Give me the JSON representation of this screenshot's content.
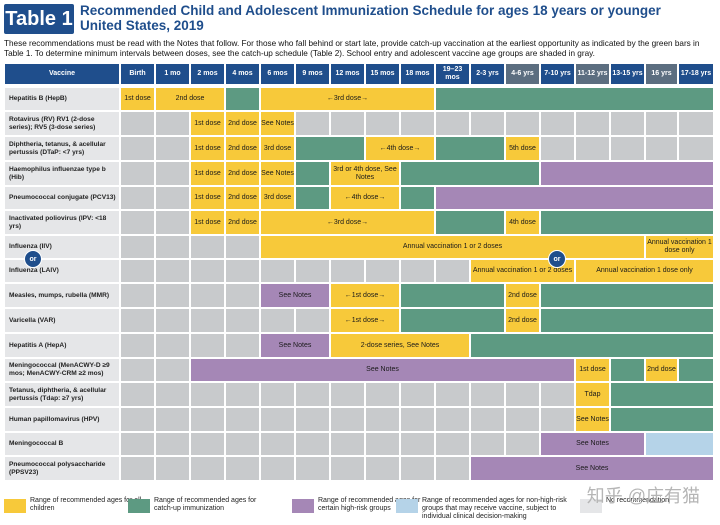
{
  "header": {
    "badge": "Table 1",
    "title": "Recommended Child and Adolescent Immunization Schedule for ages 18 years or younger United States, 2019",
    "intro": "These recommendations must be read with the Notes that follow. For those who fall behind or start late, provide catch-up vaccination at the earliest opportunity as indicated by the green bars in Table 1. To determine minimum intervals between doses, see the catch-up schedule (Table 2). School entry and adolescent vaccine age groups are shaded in gray."
  },
  "colors": {
    "yellow": "#f7c93a",
    "green": "#5d9a82",
    "purple": "#a587b6",
    "lightblue": "#b5d3e8",
    "gray": "#c8cacc",
    "header": "#1f4e8c"
  },
  "columns": [
    "Vaccine",
    "Birth",
    "1 mo",
    "2 mos",
    "4 mos",
    "6 mos",
    "9 mos",
    "12 mos",
    "15 mos",
    "18 mos",
    "19–23 mos",
    "2-3 yrs",
    "4-6 yrs",
    "7-10 yrs",
    "11-12 yrs",
    "13-15 yrs",
    "16 yrs",
    "17-18 yrs"
  ],
  "rows": [
    {
      "name": "Hepatitis B (HepB)"
    },
    {
      "name": "Rotavirus (RV) RV1 (2-dose series); RV5 (3-dose series)"
    },
    {
      "name": "Diphtheria, tetanus, & acellular pertussis (DTaP: <7 yrs)"
    },
    {
      "name": "Haemophilus influenzae type b (Hib)"
    },
    {
      "name": "Pneumococcal conjugate (PCV13)"
    },
    {
      "name": "Inactivated poliovirus (IPV: <18 yrs)"
    },
    {
      "name": "Influenza (IIV)"
    },
    {
      "name": "Influenza (LAIV)"
    },
    {
      "name": "Measles, mumps, rubella (MMR)"
    },
    {
      "name": "Varicella (VAR)"
    },
    {
      "name": "Hepatitis A (HepA)"
    },
    {
      "name": "Meningococcal (MenACWY-D ≥9 mos; MenACWY-CRM ≥2 mos)"
    },
    {
      "name": "Tetanus, diphtheria, & acellular pertussis (Tdap: ≥7 yrs)"
    },
    {
      "name": "Human papillomavirus (HPV)"
    },
    {
      "name": "Meningococcal B"
    },
    {
      "name": "Pneumococcal polysaccharide (PPSV23)"
    }
  ],
  "labels": {
    "dose1": "1st dose",
    "dose2": "2nd dose",
    "dose3": "3rd dose",
    "dose4": "4th dose",
    "dose5": "5th dose",
    "dose3or4": "3rd or 4th dose, See Notes",
    "range_1_4": "←1st dose→",
    "range_3": "←3rd dose→",
    "range_4": "←4th dose→",
    "see_notes": "See Notes",
    "annual_1or2": "Annual vaccination 1 or 2 doses",
    "annual_1": "Annual vaccination 1 dose only",
    "hepa_series": "2-dose series, See Notes",
    "tdap": "Tdap",
    "or": "or"
  },
  "legend": [
    {
      "color": "#f7c93a",
      "text": "Range of recommended ages for all children"
    },
    {
      "color": "#5d9a82",
      "text": "Range of recommended ages for catch-up immunization"
    },
    {
      "color": "#a587b6",
      "text": "Range of recommended ages for certain high-risk groups"
    },
    {
      "color": "#b5d3e8",
      "text": "Range of recommended ages for non-high-risk groups that may receive vaccine, subject to individual clinical decision-making"
    },
    {
      "color": "#e5e6e8",
      "text": "No recommendation"
    }
  ],
  "watermark": "知乎 @庄有猫"
}
